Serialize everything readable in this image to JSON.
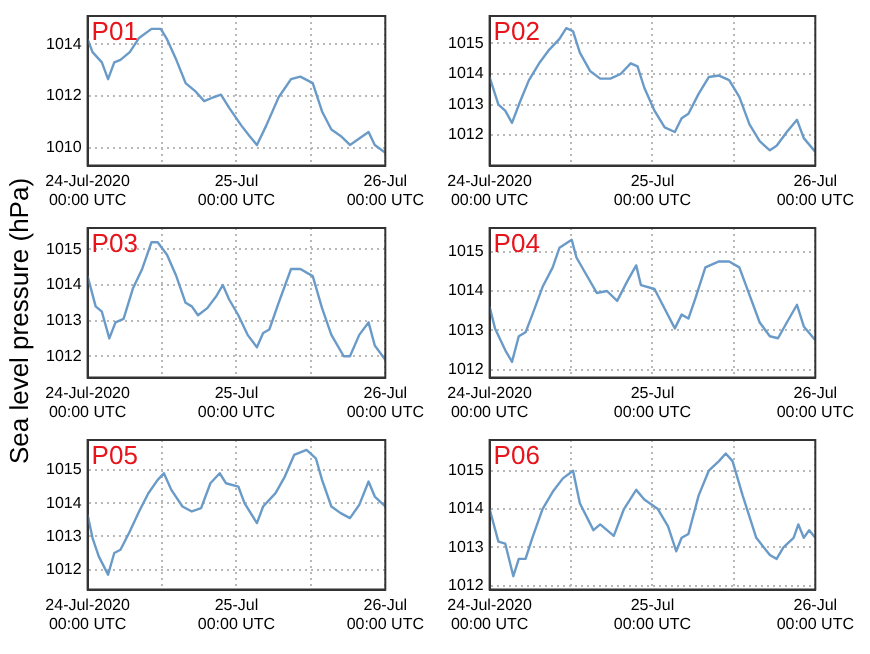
{
  "chart_data": [
    {
      "type": "line",
      "title": "P01",
      "marker": "none",
      "grid": true,
      "xlim": [
        "2020-07-24T00:00",
        "2020-07-26T00:00"
      ],
      "xticks": [
        {
          "value": "2020-07-24T00:00",
          "label": "24-Jul-2020\n00:00 UTC"
        },
        {
          "value": "2020-07-24T12:00",
          "label": null
        },
        {
          "value": "2020-07-25T00:00",
          "label": "25-Jul\n00:00 UTC"
        },
        {
          "value": "2020-07-25T12:00",
          "label": null
        },
        {
          "value": "2020-07-26T00:00",
          "label": "26-Jul\n00:00 UTC"
        }
      ],
      "ylim": [
        1009.3,
        1015.1
      ],
      "yticks": [
        1010,
        1012,
        1014
      ],
      "x": [
        "2020-07-24T00:00",
        "2020-07-24T00:48",
        "2020-07-24T02:18",
        "2020-07-24T03:18",
        "2020-07-24T04:18",
        "2020-07-24T05:18",
        "2020-07-24T06:48",
        "2020-07-24T08:18",
        "2020-07-24T10:18",
        "2020-07-24T11:48",
        "2020-07-24T12:48",
        "2020-07-24T14:18",
        "2020-07-24T15:48",
        "2020-07-24T17:18",
        "2020-07-24T18:48",
        "2020-07-24T20:18",
        "2020-07-24T21:30",
        "2020-07-24T22:48",
        "2020-07-25T00:48",
        "2020-07-25T02:06",
        "2020-07-25T03:18",
        "2020-07-25T04:48",
        "2020-07-25T06:48",
        "2020-07-25T08:48",
        "2020-07-25T10:18",
        "2020-07-25T12:18",
        "2020-07-25T13:48",
        "2020-07-25T15:18",
        "2020-07-25T16:48",
        "2020-07-25T18:18",
        "2020-07-25T19:48",
        "2020-07-25T21:18",
        "2020-07-25T22:18",
        "2020-07-26T00:00"
      ],
      "series": [
        {
          "color": "#6a9bc8",
          "values": [
            1014.2,
            1013.7,
            1013.3,
            1012.65,
            1013.3,
            1013.4,
            1013.7,
            1014.25,
            1014.6,
            1014.6,
            1014.2,
            1013.4,
            1012.5,
            1012.2,
            1011.8,
            1011.95,
            1012.05,
            1011.55,
            1010.85,
            1010.45,
            1010.1,
            1010.85,
            1011.95,
            1012.65,
            1012.75,
            1012.5,
            1011.4,
            1010.7,
            1010.45,
            1010.1,
            1010.35,
            1010.6,
            1010.1,
            1009.8
          ]
        }
      ]
    },
    {
      "type": "line",
      "title": "P02",
      "marker": "none",
      "grid": true,
      "xlim": [
        "2020-07-24T00:00",
        "2020-07-26T00:00"
      ],
      "xticks": [
        {
          "value": "2020-07-24T00:00",
          "label": "24-Jul-2020\n00:00 UTC"
        },
        {
          "value": "2020-07-24T12:00",
          "label": null
        },
        {
          "value": "2020-07-25T00:00",
          "label": "25-Jul\n00:00 UTC"
        },
        {
          "value": "2020-07-25T12:00",
          "label": null
        },
        {
          "value": "2020-07-26T00:00",
          "label": "26-Jul\n00:00 UTC"
        }
      ],
      "ylim": [
        1011.0,
        1015.9
      ],
      "yticks": [
        1012,
        1013,
        1014,
        1015
      ],
      "x": [
        "2020-07-24T00:00",
        "2020-07-24T01:18",
        "2020-07-24T02:18",
        "2020-07-24T03:18",
        "2020-07-24T04:30",
        "2020-07-24T05:48",
        "2020-07-24T07:18",
        "2020-07-24T08:48",
        "2020-07-24T10:18",
        "2020-07-24T11:18",
        "2020-07-24T12:18",
        "2020-07-24T13:18",
        "2020-07-24T14:48",
        "2020-07-24T16:18",
        "2020-07-24T17:48",
        "2020-07-24T19:18",
        "2020-07-24T20:48",
        "2020-07-24T21:48",
        "2020-07-24T22:48",
        "2020-07-25T00:18",
        "2020-07-25T01:48",
        "2020-07-25T03:18",
        "2020-07-25T04:18",
        "2020-07-25T05:18",
        "2020-07-25T06:48",
        "2020-07-25T08:18",
        "2020-07-25T09:48",
        "2020-07-25T11:18",
        "2020-07-25T12:48",
        "2020-07-25T14:18",
        "2020-07-25T15:48",
        "2020-07-25T17:18",
        "2020-07-25T18:18",
        "2020-07-25T19:48",
        "2020-07-25T21:18",
        "2020-07-25T22:18",
        "2020-07-26T00:00"
      ],
      "series": [
        {
          "color": "#6a9bc8",
          "values": [
            1013.9,
            1013.0,
            1012.8,
            1012.4,
            1013.1,
            1013.8,
            1014.35,
            1014.8,
            1015.15,
            1015.5,
            1015.4,
            1014.7,
            1014.1,
            1013.85,
            1013.85,
            1014.0,
            1014.35,
            1014.25,
            1013.55,
            1012.8,
            1012.25,
            1012.1,
            1012.55,
            1012.7,
            1013.35,
            1013.9,
            1013.95,
            1013.8,
            1013.25,
            1012.35,
            1011.8,
            1011.5,
            1011.65,
            1012.1,
            1012.5,
            1011.9,
            1011.45
          ]
        }
      ]
    },
    {
      "type": "line",
      "title": "P03",
      "ylabel": "Sea level pressure (hPa)",
      "marker": "none",
      "grid": true,
      "xlim": [
        "2020-07-24T00:00",
        "2020-07-26T00:00"
      ],
      "xticks": [
        {
          "value": "2020-07-24T00:00",
          "label": "24-Jul-2020\n00:00 UTC"
        },
        {
          "value": "2020-07-24T12:00",
          "label": null
        },
        {
          "value": "2020-07-25T00:00",
          "label": "25-Jul\n00:00 UTC"
        },
        {
          "value": "2020-07-25T12:00",
          "label": null
        },
        {
          "value": "2020-07-26T00:00",
          "label": "26-Jul\n00:00 UTC"
        }
      ],
      "ylim": [
        1011.4,
        1015.6
      ],
      "yticks": [
        1012,
        1013,
        1014,
        1015
      ],
      "x": [
        "2020-07-24T00:00",
        "2020-07-24T01:18",
        "2020-07-24T02:18",
        "2020-07-24T03:30",
        "2020-07-24T04:30",
        "2020-07-24T05:48",
        "2020-07-24T07:18",
        "2020-07-24T08:48",
        "2020-07-24T10:18",
        "2020-07-24T11:18",
        "2020-07-24T12:48",
        "2020-07-24T14:18",
        "2020-07-24T15:48",
        "2020-07-24T16:48",
        "2020-07-24T17:48",
        "2020-07-24T19:18",
        "2020-07-24T20:48",
        "2020-07-24T21:48",
        "2020-07-24T22:48",
        "2020-07-25T00:18",
        "2020-07-25T01:48",
        "2020-07-25T03:18",
        "2020-07-25T04:18",
        "2020-07-25T05:18",
        "2020-07-25T06:48",
        "2020-07-25T08:48",
        "2020-07-25T10:18",
        "2020-07-25T12:18",
        "2020-07-25T13:48",
        "2020-07-25T15:18",
        "2020-07-25T17:18",
        "2020-07-25T18:18",
        "2020-07-25T19:48",
        "2020-07-25T21:18",
        "2020-07-25T22:18",
        "2020-07-26T00:00"
      ],
      "series": [
        {
          "color": "#6a9bc8",
          "values": [
            1014.25,
            1013.4,
            1013.25,
            1012.5,
            1012.95,
            1013.05,
            1013.9,
            1014.45,
            1015.2,
            1015.2,
            1014.85,
            1014.25,
            1013.5,
            1013.4,
            1013.15,
            1013.35,
            1013.7,
            1014.0,
            1013.6,
            1013.15,
            1012.6,
            1012.25,
            1012.65,
            1012.75,
            1013.5,
            1014.45,
            1014.45,
            1014.25,
            1013.35,
            1012.6,
            1012.0,
            1012.0,
            1012.6,
            1012.95,
            1012.3,
            1011.9
          ]
        }
      ]
    },
    {
      "type": "line",
      "title": "P04",
      "marker": "none",
      "grid": true,
      "xlim": [
        "2020-07-24T00:00",
        "2020-07-26T00:00"
      ],
      "xticks": [
        {
          "value": "2020-07-24T00:00",
          "label": "24-Jul-2020\n00:00 UTC"
        },
        {
          "value": "2020-07-24T12:00",
          "label": null
        },
        {
          "value": "2020-07-25T00:00",
          "label": "25-Jul\n00:00 UTC"
        },
        {
          "value": "2020-07-25T12:00",
          "label": null
        },
        {
          "value": "2020-07-26T00:00",
          "label": "26-Jul\n00:00 UTC"
        }
      ],
      "ylim": [
        1011.8,
        1015.6
      ],
      "yticks": [
        1012,
        1013,
        1014,
        1015
      ],
      "x": [
        "2020-07-24T00:00",
        "2020-07-24T00:48",
        "2020-07-24T02:18",
        "2020-07-24T03:18",
        "2020-07-24T04:18",
        "2020-07-24T05:18",
        "2020-07-24T06:18",
        "2020-07-24T07:48",
        "2020-07-24T09:18",
        "2020-07-24T10:18",
        "2020-07-24T12:06",
        "2020-07-24T12:48",
        "2020-07-24T14:18",
        "2020-07-24T15:48",
        "2020-07-24T17:18",
        "2020-07-24T18:48",
        "2020-07-24T20:18",
        "2020-07-24T21:36",
        "2020-07-24T22:18",
        "2020-07-25T00:18",
        "2020-07-25T01:48",
        "2020-07-25T03:18",
        "2020-07-25T04:18",
        "2020-07-25T05:18",
        "2020-07-25T06:18",
        "2020-07-25T07:48",
        "2020-07-25T09:48",
        "2020-07-25T11:18",
        "2020-07-25T12:48",
        "2020-07-25T14:18",
        "2020-07-25T15:48",
        "2020-07-25T17:18",
        "2020-07-25T18:30",
        "2020-07-25T19:48",
        "2020-07-25T21:18",
        "2020-07-25T22:18",
        "2020-07-26T00:00"
      ],
      "series": [
        {
          "color": "#6a9bc8",
          "values": [
            1013.6,
            1013.05,
            1012.5,
            1012.2,
            1012.85,
            1012.95,
            1013.4,
            1014.1,
            1014.6,
            1015.1,
            1015.3,
            1014.85,
            1014.4,
            1013.95,
            1014.0,
            1013.75,
            1014.25,
            1014.65,
            1014.15,
            1014.05,
            1013.55,
            1013.05,
            1013.4,
            1013.3,
            1013.8,
            1014.6,
            1014.75,
            1014.75,
            1014.6,
            1013.9,
            1013.2,
            1012.85,
            1012.8,
            1013.2,
            1013.65,
            1013.1,
            1012.75
          ]
        }
      ]
    },
    {
      "type": "line",
      "title": "P05",
      "marker": "none",
      "grid": true,
      "xlim": [
        "2020-07-24T00:00",
        "2020-07-26T00:00"
      ],
      "xticks": [
        {
          "value": "2020-07-24T00:00",
          "label": "24-Jul-2020\n00:00 UTC"
        },
        {
          "value": "2020-07-24T12:00",
          "label": null
        },
        {
          "value": "2020-07-25T00:00",
          "label": "25-Jul\n00:00 UTC"
        },
        {
          "value": "2020-07-25T12:00",
          "label": null
        },
        {
          "value": "2020-07-26T00:00",
          "label": "26-Jul\n00:00 UTC"
        }
      ],
      "ylim": [
        1011.4,
        1015.9
      ],
      "yticks": [
        1012,
        1013,
        1014,
        1015
      ],
      "x": [
        "2020-07-24T00:00",
        "2020-07-24T00:48",
        "2020-07-24T01:48",
        "2020-07-24T03:18",
        "2020-07-24T04:18",
        "2020-07-24T05:18",
        "2020-07-24T06:48",
        "2020-07-24T08:18",
        "2020-07-24T09:48",
        "2020-07-24T11:18",
        "2020-07-24T12:18",
        "2020-07-24T13:30",
        "2020-07-24T15:18",
        "2020-07-24T16:48",
        "2020-07-24T18:18",
        "2020-07-24T19:48",
        "2020-07-24T21:18",
        "2020-07-24T22:18",
        "2020-07-25T00:18",
        "2020-07-25T01:18",
        "2020-07-25T03:18",
        "2020-07-25T04:18",
        "2020-07-25T06:18",
        "2020-07-25T07:48",
        "2020-07-25T09:18",
        "2020-07-25T11:18",
        "2020-07-25T12:48",
        "2020-07-25T13:48",
        "2020-07-25T15:18",
        "2020-07-25T16:48",
        "2020-07-25T18:18",
        "2020-07-25T19:48",
        "2020-07-25T21:18",
        "2020-07-25T22:18",
        "2020-07-26T00:00"
      ],
      "series": [
        {
          "color": "#6a9bc8",
          "values": [
            1013.65,
            1012.95,
            1012.4,
            1011.85,
            1012.5,
            1012.6,
            1013.15,
            1013.75,
            1014.3,
            1014.7,
            1014.9,
            1014.4,
            1013.9,
            1013.75,
            1013.85,
            1014.6,
            1014.9,
            1014.6,
            1014.5,
            1014.0,
            1013.4,
            1013.9,
            1014.3,
            1014.8,
            1015.45,
            1015.6,
            1015.35,
            1014.7,
            1013.9,
            1013.7,
            1013.55,
            1013.95,
            1014.65,
            1014.2,
            1013.9
          ]
        }
      ]
    },
    {
      "type": "line",
      "title": "P06",
      "marker": "none",
      "grid": true,
      "xlim": [
        "2020-07-24T00:00",
        "2020-07-26T00:00"
      ],
      "xticks": [
        {
          "value": "2020-07-24T00:00",
          "label": "24-Jul-2020\n00:00 UTC"
        },
        {
          "value": "2020-07-24T12:00",
          "label": null
        },
        {
          "value": "2020-07-25T00:00",
          "label": "25-Jul\n00:00 UTC"
        },
        {
          "value": "2020-07-25T12:00",
          "label": null
        },
        {
          "value": "2020-07-26T00:00",
          "label": "26-Jul\n00:00 UTC"
        }
      ],
      "ylim": [
        1011.9,
        1015.8
      ],
      "yticks": [
        1012,
        1013,
        1014,
        1015
      ],
      "x": [
        "2020-07-24T00:00",
        "2020-07-24T01:18",
        "2020-07-24T02:18",
        "2020-07-24T03:30",
        "2020-07-24T04:18",
        "2020-07-24T05:18",
        "2020-07-24T06:18",
        "2020-07-24T07:48",
        "2020-07-24T09:18",
        "2020-07-24T10:48",
        "2020-07-24T12:18",
        "2020-07-24T13:18",
        "2020-07-24T15:18",
        "2020-07-24T16:18",
        "2020-07-24T17:18",
        "2020-07-24T18:18",
        "2020-07-24T19:48",
        "2020-07-24T21:36",
        "2020-07-24T22:48",
        "2020-07-25T00:48",
        "2020-07-25T02:18",
        "2020-07-25T03:30",
        "2020-07-25T04:18",
        "2020-07-25T05:18",
        "2020-07-25T06:48",
        "2020-07-25T08:18",
        "2020-07-25T09:48",
        "2020-07-25T10:48",
        "2020-07-25T11:48",
        "2020-07-25T13:18",
        "2020-07-25T15:18",
        "2020-07-25T17:18",
        "2020-07-25T18:18",
        "2020-07-25T19:18",
        "2020-07-25T20:48",
        "2020-07-25T21:30",
        "2020-07-25T22:18",
        "2020-07-25T23:06",
        "2020-07-26T00:00"
      ],
      "series": [
        {
          "color": "#6a9bc8",
          "values": [
            1014.0,
            1013.15,
            1013.1,
            1012.25,
            1012.7,
            1012.7,
            1013.25,
            1014.0,
            1014.45,
            1014.8,
            1015.0,
            1014.15,
            1013.45,
            1013.6,
            1013.45,
            1013.3,
            1014.0,
            1014.5,
            1014.25,
            1014.0,
            1013.55,
            1012.9,
            1013.25,
            1013.35,
            1014.35,
            1015.0,
            1015.25,
            1015.45,
            1015.25,
            1014.35,
            1013.25,
            1012.8,
            1012.7,
            1013.0,
            1013.25,
            1013.6,
            1013.25,
            1013.45,
            1013.25
          ]
        }
      ]
    }
  ]
}
